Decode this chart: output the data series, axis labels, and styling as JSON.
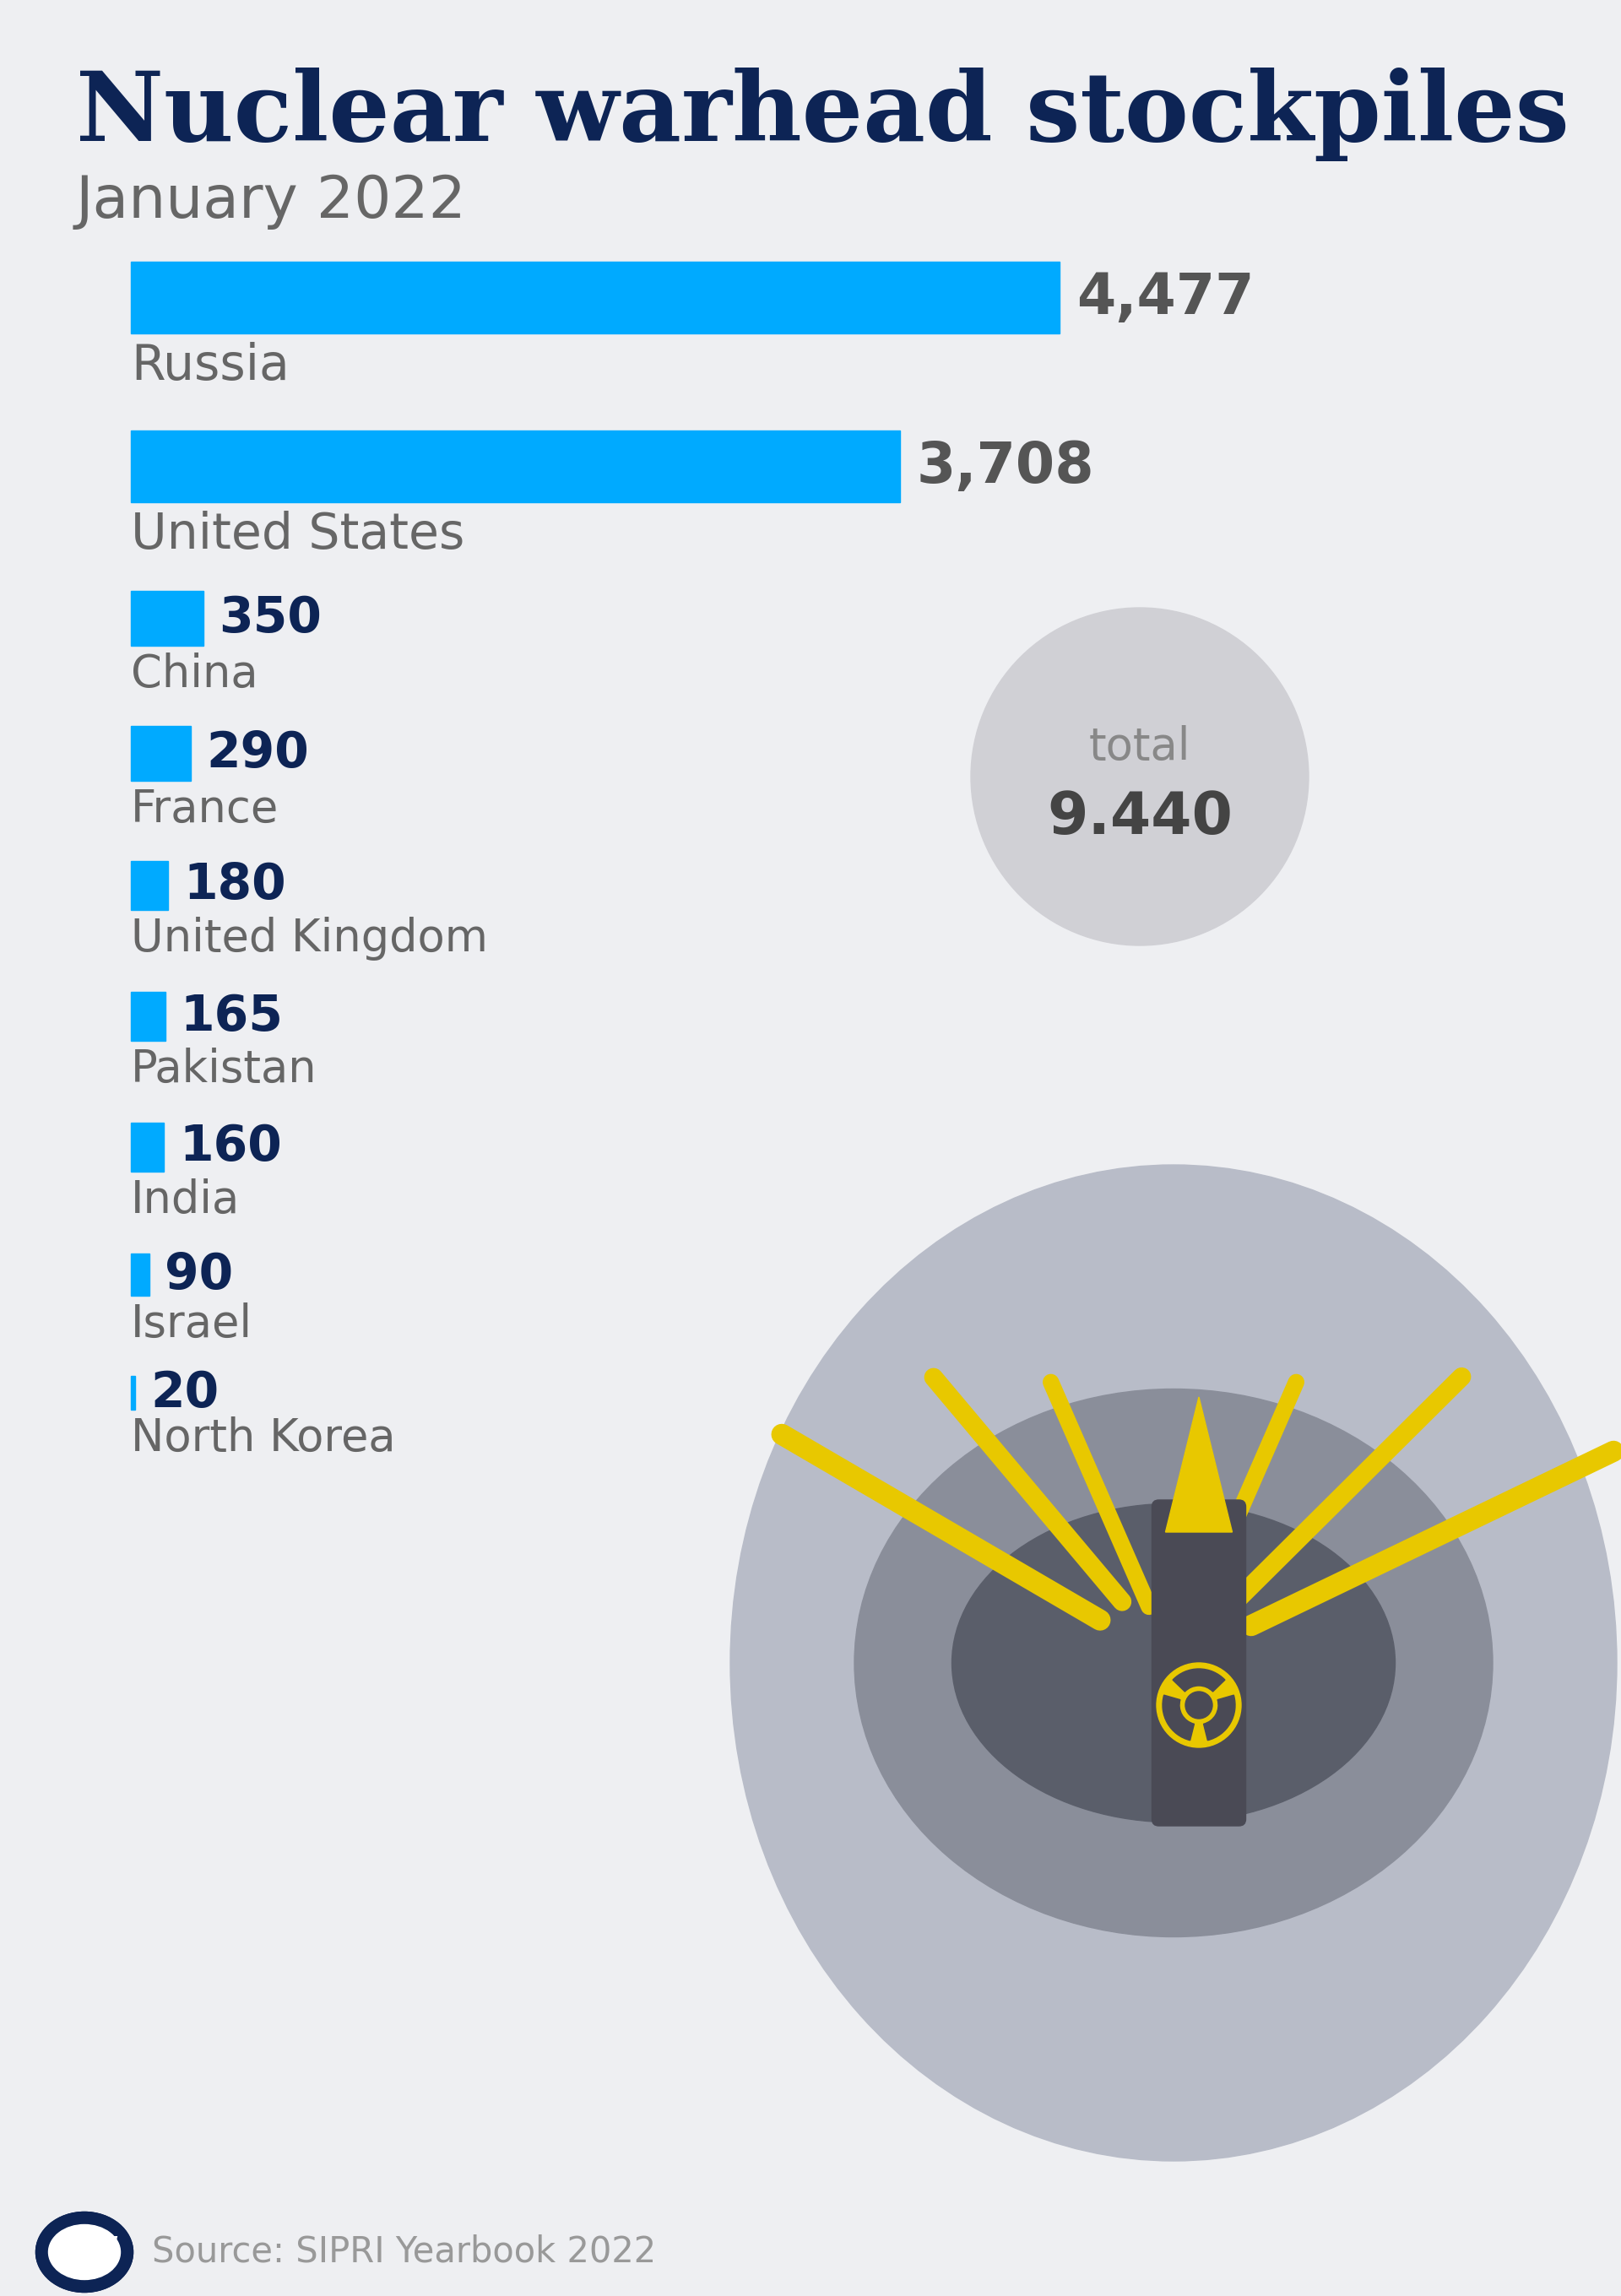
{
  "title": "Nuclear warhead stockpiles",
  "subtitle": "January 2022",
  "source": "Source: SIPRI Yearbook 2022",
  "bg_color": "#eeeff2",
  "bar_color": "#00aaff",
  "title_color": "#0d2455",
  "subtitle_color": "#666666",
  "label_color": "#666666",
  "value_color_large": "#555555",
  "value_color_small": "#0d2455",
  "total_label": "total",
  "total_value": "9.440",
  "total_circle_color": "#d0d0d5",
  "countries": [
    "Russia",
    "United States",
    "China",
    "France",
    "United Kingdom",
    "Pakistan",
    "India",
    "Israel",
    "North Korea"
  ],
  "values": [
    4477,
    3708,
    350,
    290,
    180,
    165,
    160,
    90,
    20
  ],
  "value_labels": [
    "4,477",
    "3,708",
    "350",
    "290",
    "180",
    "165",
    "160",
    "90",
    "20"
  ],
  "max_value": 4477,
  "dw_logo_color": "#0d2455",
  "missile_body_color": "#4a4a55",
  "missile_tip_color": "#e8c800",
  "silo_outer_color": "#b8bcc8",
  "silo_inner_color": "#8a8e9a",
  "silo_dark_color": "#5a5e6a",
  "radiation_color": "#e8c800",
  "spike_color": "#e8c800",
  "spike_lw": 18
}
